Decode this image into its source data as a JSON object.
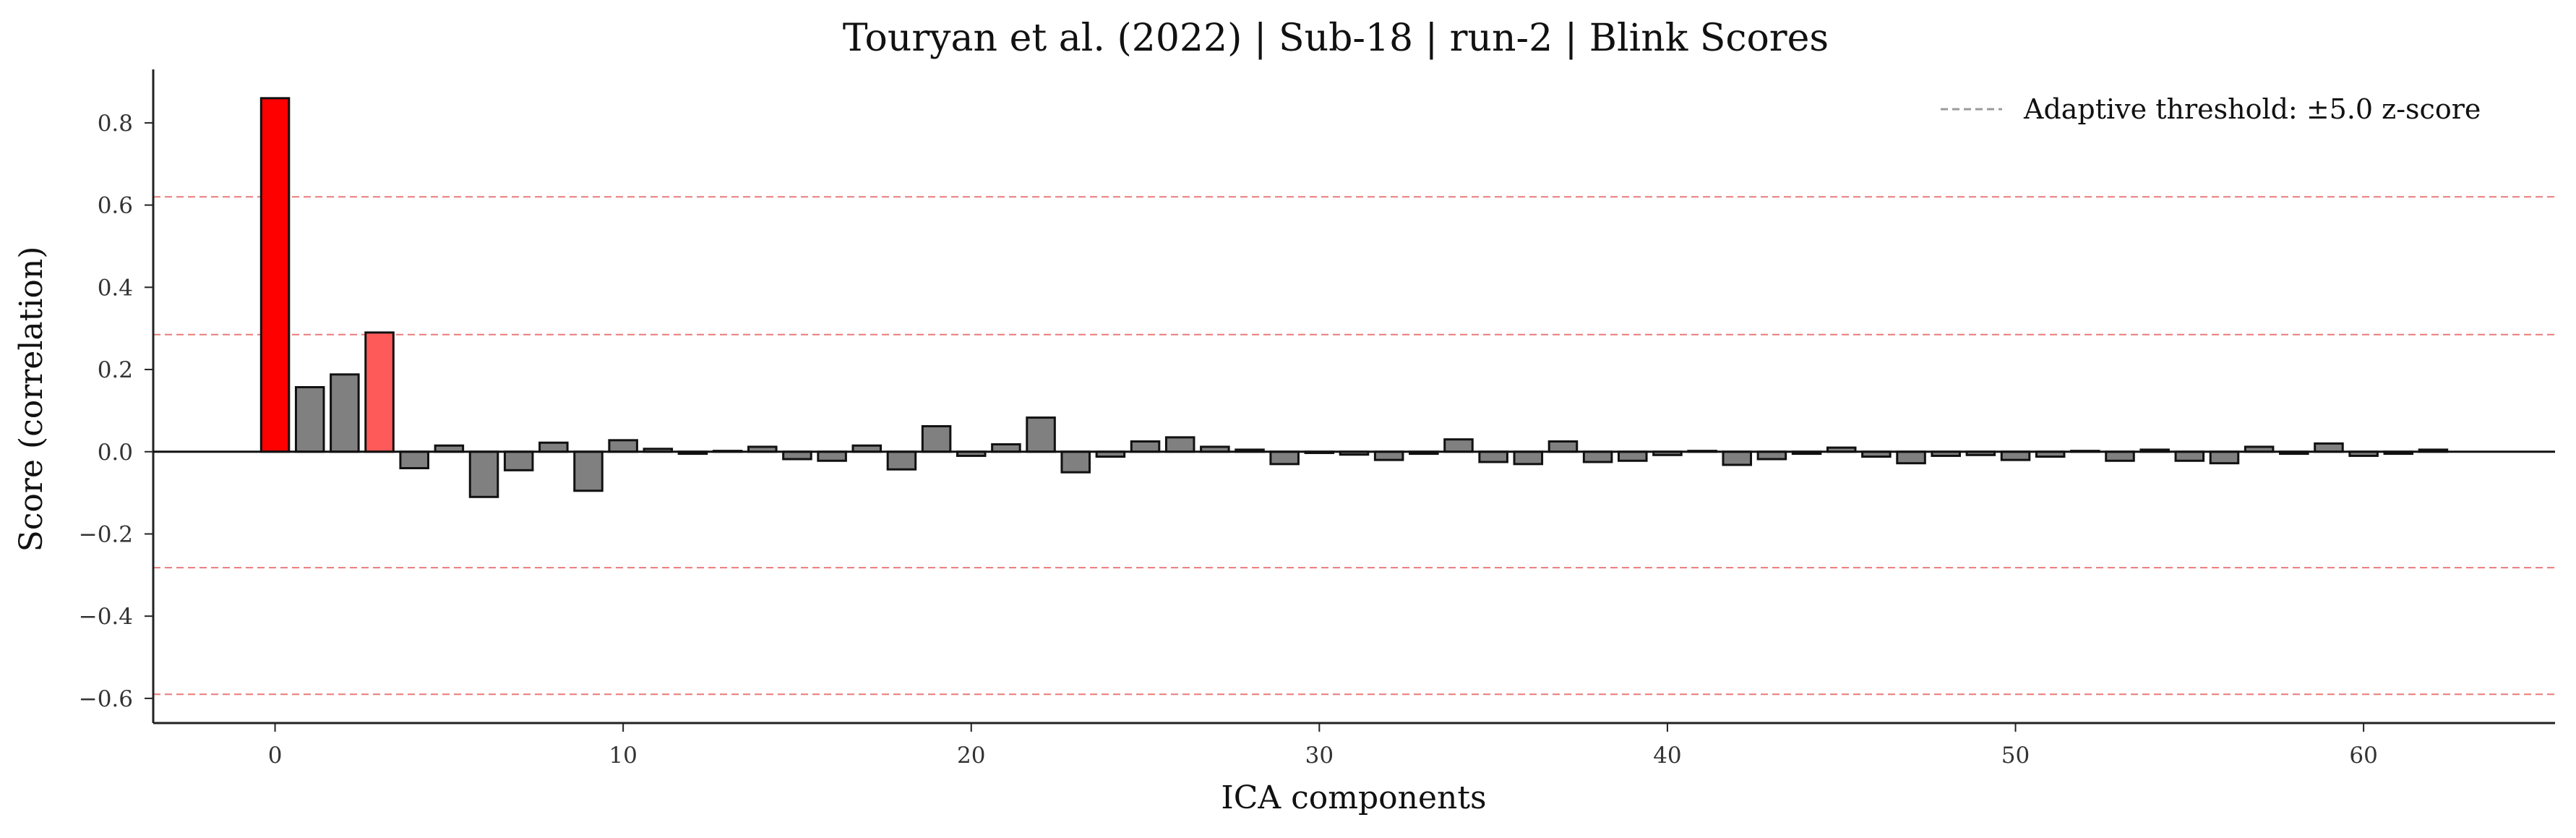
{
  "chart_data": {
    "type": "bar",
    "title": "Touryan et al. (2022) | Sub-18 | run-2 | Blink Scores",
    "xlabel": "ICA components",
    "ylabel": "Score (correlation)",
    "xlim": [
      -3.5,
      65.5
    ],
    "ylim": [
      -0.66,
      0.93
    ],
    "xticks": [
      0,
      10,
      20,
      30,
      40,
      50,
      60
    ],
    "xtick_labels": [
      "0",
      "10",
      "20",
      "30",
      "40",
      "50",
      "60"
    ],
    "yticks": [
      -0.6,
      -0.4,
      -0.2,
      0.0,
      0.2,
      0.4,
      0.6,
      0.8
    ],
    "ytick_labels": [
      "−0.6",
      "−0.4",
      "−0.2",
      "0.0",
      "0.2",
      "0.4",
      "0.6",
      "0.8"
    ],
    "grid": false,
    "legend": {
      "placement": "top-right",
      "label": "Adaptive threshold: ±5.0 z-score",
      "line_color": "#9b9b9b"
    },
    "thresholds": [
      0.62,
      0.285,
      -0.282,
      -0.59
    ],
    "threshold_color": "#ea7a7a",
    "colors": {
      "default": "#808080",
      "strong": "#ff0000",
      "moderate": "#ff5a5a",
      "edge": "#111111"
    },
    "x": [
      0,
      1,
      2,
      3,
      4,
      5,
      6,
      7,
      8,
      9,
      10,
      11,
      12,
      13,
      14,
      15,
      16,
      17,
      18,
      19,
      20,
      21,
      22,
      23,
      24,
      25,
      26,
      27,
      28,
      29,
      30,
      31,
      32,
      33,
      34,
      35,
      36,
      37,
      38,
      39,
      40,
      41,
      42,
      43,
      44,
      45,
      46,
      47,
      48,
      49,
      50,
      51,
      52,
      53,
      54,
      55,
      56,
      57,
      58,
      59,
      60,
      61,
      62
    ],
    "values": [
      0.86,
      0.157,
      0.188,
      0.29,
      -0.04,
      0.015,
      -0.11,
      -0.045,
      0.022,
      -0.095,
      0.028,
      0.007,
      -0.005,
      0.002,
      0.012,
      -0.018,
      -0.022,
      0.015,
      -0.043,
      0.062,
      -0.01,
      0.018,
      0.083,
      -0.05,
      -0.012,
      0.025,
      0.035,
      0.012,
      0.005,
      -0.03,
      -0.003,
      -0.007,
      -0.02,
      -0.005,
      0.03,
      -0.025,
      -0.03,
      0.025,
      -0.025,
      -0.022,
      -0.008,
      0.002,
      -0.032,
      -0.018,
      -0.005,
      0.01,
      -0.012,
      -0.028,
      -0.01,
      -0.008,
      -0.02,
      -0.012,
      0.002,
      -0.022,
      0.005,
      -0.022,
      -0.028,
      0.012,
      -0.005,
      0.02,
      -0.01,
      -0.005,
      0.005
    ],
    "bar_categories": [
      "strong",
      "default",
      "default",
      "moderate",
      "default",
      "default",
      "default",
      "default",
      "default",
      "default",
      "default",
      "default",
      "default",
      "default",
      "default",
      "default",
      "default",
      "default",
      "default",
      "default",
      "default",
      "default",
      "default",
      "default",
      "default",
      "default",
      "default",
      "default",
      "default",
      "default",
      "default",
      "default",
      "default",
      "default",
      "default",
      "default",
      "default",
      "default",
      "default",
      "default",
      "default",
      "default",
      "default",
      "default",
      "default",
      "default",
      "default",
      "default",
      "default",
      "default",
      "default",
      "default",
      "default",
      "default",
      "default",
      "default",
      "default",
      "default",
      "default",
      "default",
      "default",
      "default",
      "default"
    ]
  }
}
